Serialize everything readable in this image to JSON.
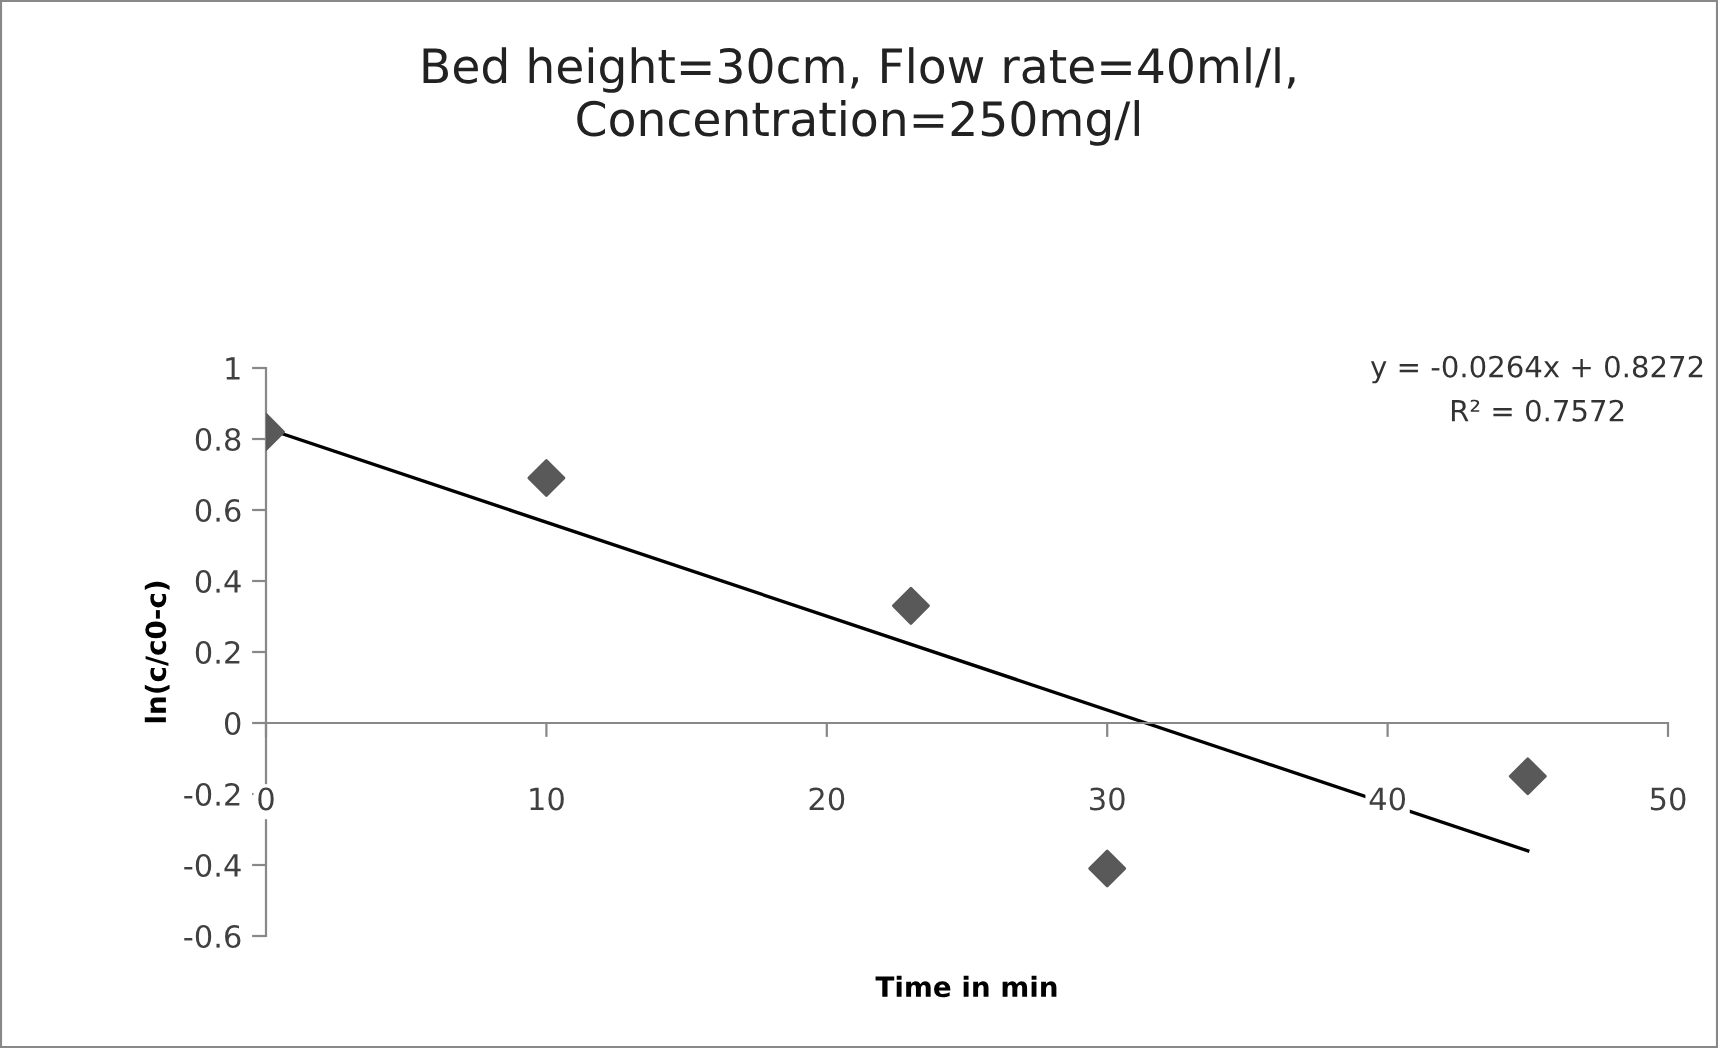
{
  "chart_data": {
    "type": "scatter",
    "title": "Bed height=30cm, Flow rate=40ml/l,\nConcentration=250mg/l",
    "xlabel": "Time in min",
    "ylabel": "ln(c/c0-c)",
    "x": [
      0,
      10,
      23,
      30,
      45
    ],
    "series": [
      {
        "color": "#595959",
        "marker": "diamond",
        "values": [
          0.82,
          0.69,
          0.33,
          -0.41,
          -0.15
        ]
      },
      {
        "type": "line",
        "color": "#000000",
        "marker": "none",
        "line_style": "solid",
        "x": [
          0,
          45
        ],
        "values": [
          0.83,
          -0.36
        ]
      }
    ],
    "annotations": [
      "y = -0.0264x + 0.8272",
      "R² = 0.7572"
    ],
    "xlim": [
      0,
      50
    ],
    "xticks": [
      0,
      10,
      20,
      30,
      40,
      50
    ],
    "ylim": [
      -0.6,
      1
    ],
    "yticks": [
      -0.6,
      -0.4,
      -0.2,
      0,
      0.2,
      0.4,
      0.6,
      0.8,
      1
    ],
    "grid": false,
    "legend": false
  }
}
